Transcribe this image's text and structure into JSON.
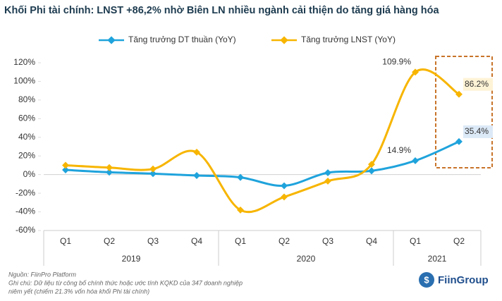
{
  "chart_data": {
    "type": "line",
    "title": "Khối Phi tài chính: LNST +86,2% nhờ Biên LN nhiều ngành cải thiện do tăng giá hàng hóa",
    "categories": [
      "Q1",
      "Q2",
      "Q3",
      "Q4",
      "Q1",
      "Q2",
      "Q3",
      "Q4",
      "Q1",
      "Q2"
    ],
    "x_groups": [
      {
        "label": "2019",
        "count": 4
      },
      {
        "label": "2020",
        "count": 4
      },
      {
        "label": "2021",
        "count": 2
      }
    ],
    "series": [
      {
        "name": "Tăng trưởng DT thuần (YoY)",
        "color": "#1fa3dc",
        "values": [
          5,
          2.5,
          1,
          -1,
          -3,
          -12,
          2,
          4,
          14.9,
          35.4
        ],
        "value_labels": [
          null,
          null,
          null,
          null,
          null,
          null,
          null,
          null,
          "14.9%",
          "35.4%"
        ]
      },
      {
        "name": "Tăng trưởng LNST (YoY)",
        "color": "#f7b500",
        "values": [
          10,
          7.5,
          6,
          24,
          -38,
          -24,
          -7,
          11,
          109.9,
          86.2
        ],
        "value_labels": [
          null,
          null,
          null,
          null,
          null,
          null,
          null,
          null,
          "109.9%",
          "86.2%"
        ]
      }
    ],
    "ylim": [
      -60,
      120
    ],
    "yticks": [
      {
        "value": -60,
        "label": "-60%"
      },
      {
        "value": -40,
        "label": "-40%"
      },
      {
        "value": -20,
        "label": "-20%"
      },
      {
        "value": 0,
        "label": "0%"
      },
      {
        "value": 20,
        "label": "20%"
      },
      {
        "value": 40,
        "label": "40%"
      },
      {
        "value": 60,
        "label": "60%"
      },
      {
        "value": 80,
        "label": "80%"
      },
      {
        "value": 100,
        "label": "100%"
      },
      {
        "value": 120,
        "label": "120%"
      }
    ],
    "legend": "top"
  },
  "footer": {
    "source": "Nguồn: FiinPro Platform",
    "note": "Ghi chú: Dữ liệu từ công bố chính thức hoặc ước tính KQKD của 347 doanh nghiệp",
    "note2": "niêm yết (chiếm 21.3% vốn hóa khối Phi tài chính)",
    "logo": "FiinGroup"
  }
}
